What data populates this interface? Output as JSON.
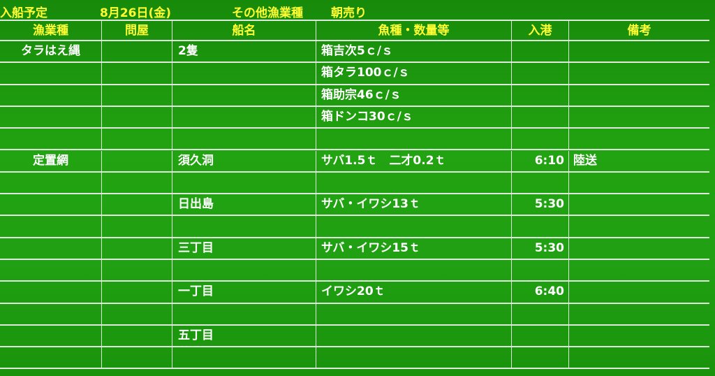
{
  "title": {
    "label": "入船予定",
    "date": "8月26日(金)",
    "category": "その他漁業種",
    "session": "朝売り"
  },
  "colors": {
    "background": "#1f9a0e",
    "header_text": "#ffff33",
    "body_text": "#ffffff",
    "grid": "#dfe8dc"
  },
  "columns": [
    "漁業種",
    "問屋",
    "船名",
    "魚種・数量等",
    "入港",
    "備考"
  ],
  "rows": [
    [
      "タラはえ縄",
      "",
      "2隻",
      "箱吉次5ｃ/ｓ",
      "",
      ""
    ],
    [
      "",
      "",
      "",
      "箱タラ100ｃ/ｓ",
      "",
      ""
    ],
    [
      "",
      "",
      "",
      "箱助宗46ｃ/ｓ",
      "",
      ""
    ],
    [
      "",
      "",
      "",
      "箱ドンコ30ｃ/ｓ",
      "",
      ""
    ],
    [
      "",
      "",
      "",
      "",
      "",
      ""
    ],
    [
      "定置網",
      "",
      "須久洞",
      "サバ1.5ｔ　二才0.2ｔ",
      "6:10",
      "陸送"
    ],
    [
      "",
      "",
      "",
      "",
      "",
      ""
    ],
    [
      "",
      "",
      "日出島",
      "サバ・イワシ13ｔ",
      "5:30",
      ""
    ],
    [
      "",
      "",
      "",
      "",
      "",
      ""
    ],
    [
      "",
      "",
      "三丁目",
      "サバ・イワシ15ｔ",
      "5:30",
      ""
    ],
    [
      "",
      "",
      "",
      "",
      "",
      ""
    ],
    [
      "",
      "",
      "一丁目",
      "イワシ20ｔ",
      "6:40",
      ""
    ],
    [
      "",
      "",
      "",
      "",
      "",
      ""
    ],
    [
      "",
      "",
      "五丁目",
      "",
      "",
      ""
    ],
    [
      "",
      "",
      "",
      "",
      "",
      ""
    ]
  ]
}
